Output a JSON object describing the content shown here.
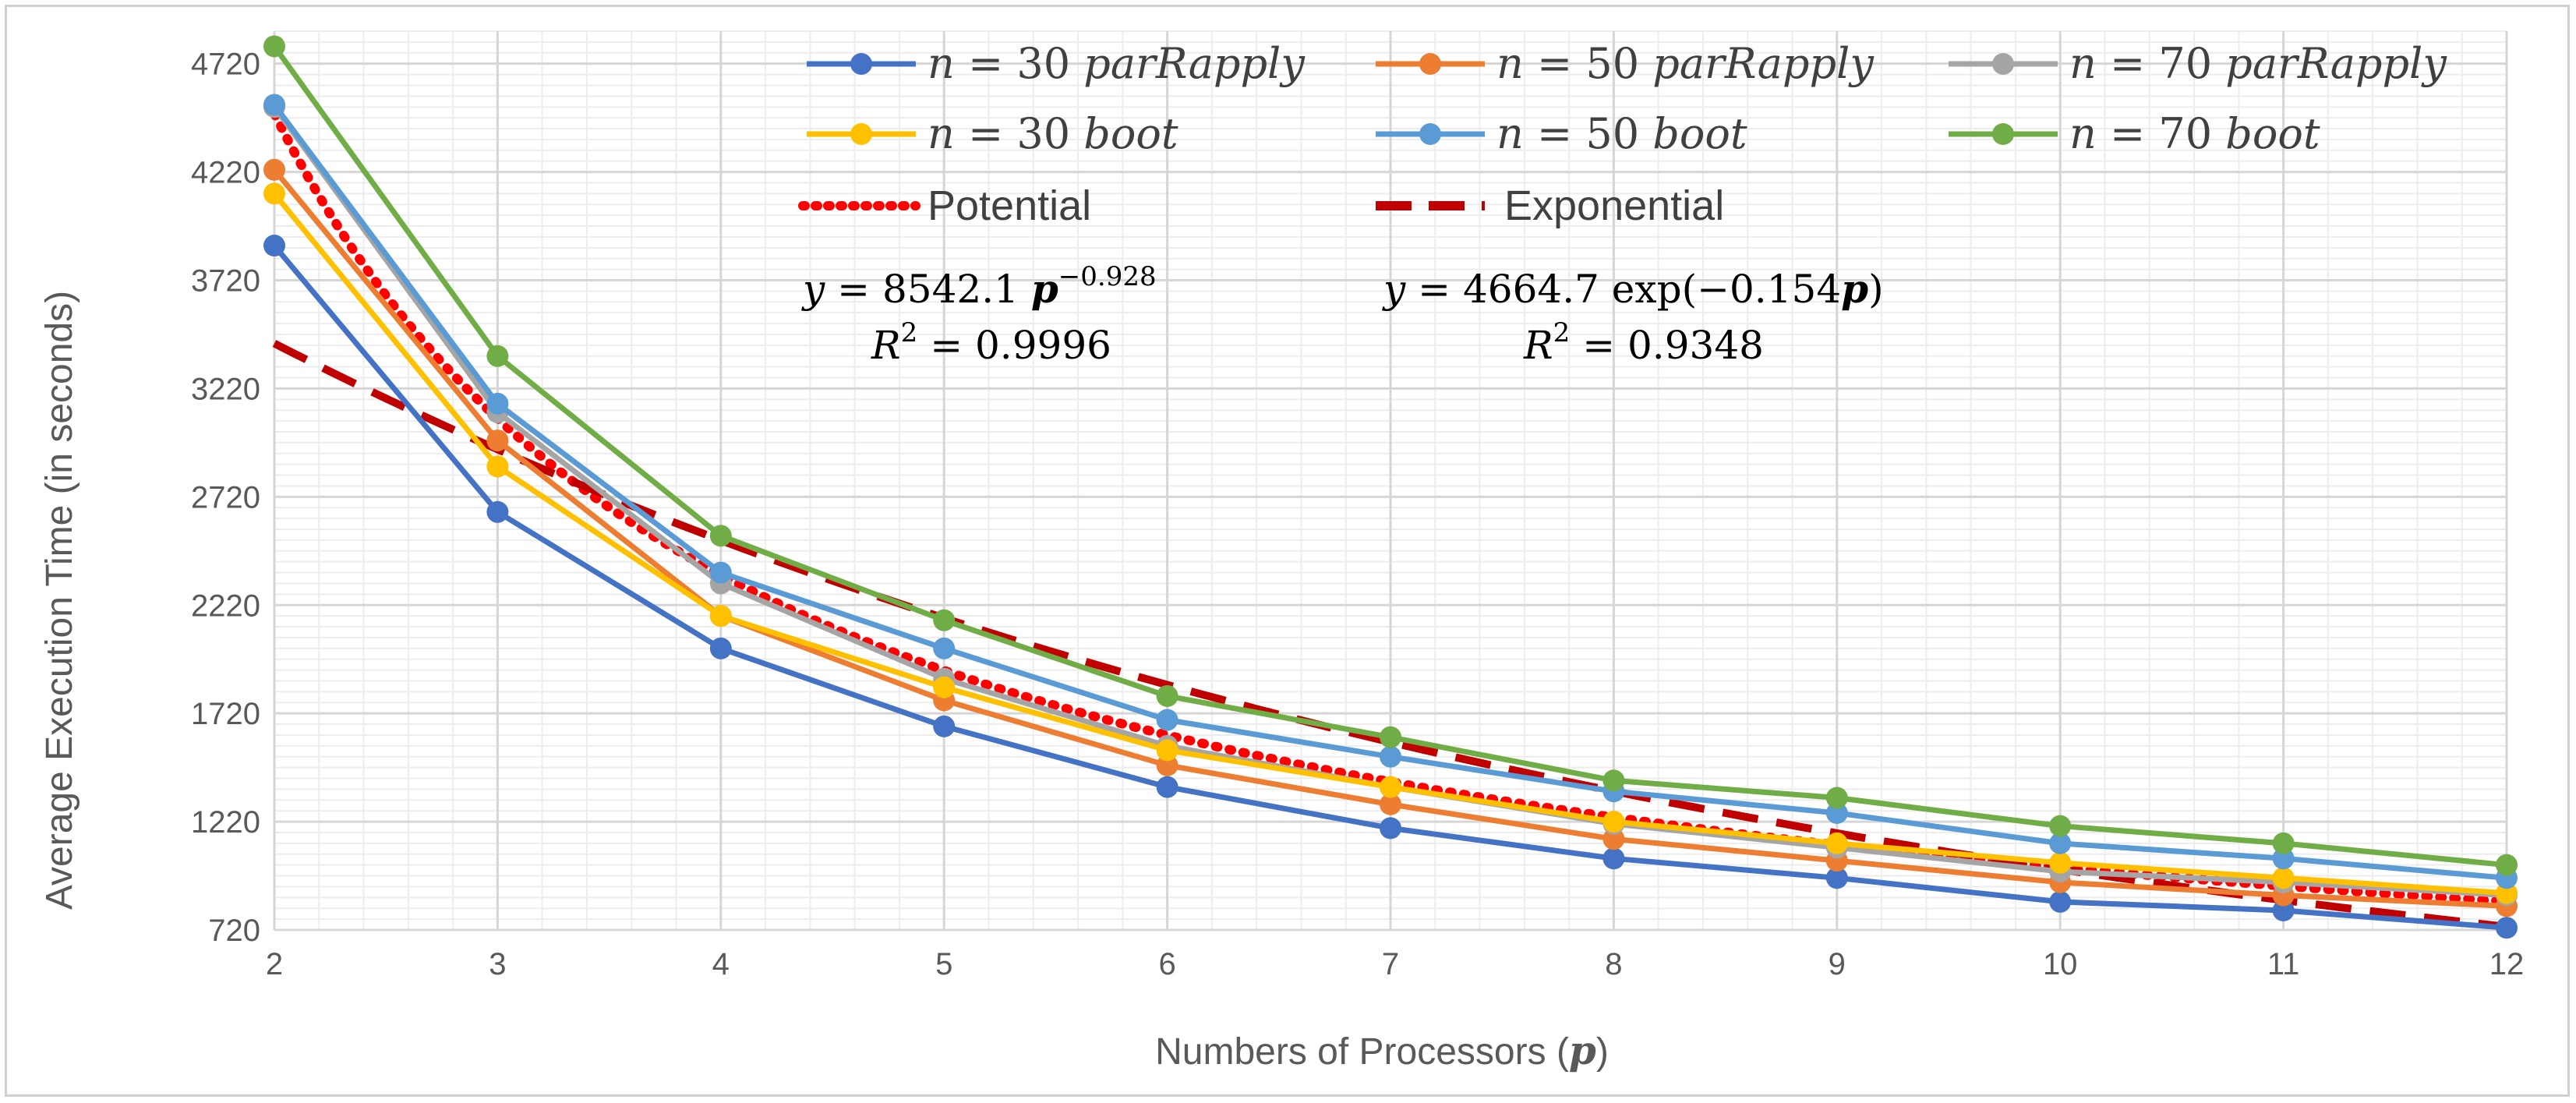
{
  "chart_data": {
    "type": "line",
    "title": "",
    "xlabel": "Numbers of Processors (p)",
    "xlabel_prefix": "Numbers of Processors (",
    "xlabel_var": "p",
    "xlabel_suffix": ")",
    "ylabel": "Average Execution Time (in seconds)",
    "x": [
      2,
      3,
      4,
      5,
      6,
      7,
      8,
      9,
      10,
      11,
      12
    ],
    "ylim": [
      720,
      4870
    ],
    "yticks": [
      720,
      1220,
      1720,
      2220,
      2720,
      3220,
      3720,
      4220,
      4720
    ],
    "grid": true,
    "legend_position": "top",
    "series": [
      {
        "name": "n = 30  parRapply",
        "n_label": "n",
        "n_value": "= 30",
        "method": "parRapply",
        "color": "#4472C4",
        "values": [
          3880,
          2650,
          2020,
          1660,
          1380,
          1190,
          1050,
          960,
          850,
          810,
          730
        ]
      },
      {
        "name": "n = 50  parRapply",
        "n_label": "n",
        "n_value": "= 50",
        "method": "parRapply",
        "color": "#ED7D31",
        "values": [
          4230,
          2980,
          2170,
          1780,
          1480,
          1300,
          1140,
          1040,
          940,
          880,
          830
        ]
      },
      {
        "name": "n = 70  parRapply",
        "n_label": "n",
        "n_value": "= 70",
        "method": "parRapply",
        "color": "#A5A5A5",
        "values": [
          4520,
          3110,
          2320,
          1880,
          1570,
          1380,
          1210,
          1100,
          990,
          940,
          880
        ]
      },
      {
        "name": "n = 30  boot",
        "n_label": "n",
        "n_value": "= 30",
        "method": "boot",
        "color": "#FFC000",
        "values": [
          4120,
          2860,
          2170,
          1840,
          1550,
          1380,
          1220,
          1120,
          1030,
          960,
          890
        ]
      },
      {
        "name": "n = 50  boot",
        "n_label": "n",
        "n_value": "= 50",
        "method": "boot",
        "color": "#5B9BD5",
        "values": [
          4530,
          3150,
          2370,
          2020,
          1690,
          1520,
          1360,
          1260,
          1120,
          1050,
          960
        ]
      },
      {
        "name": "n = 70  boot",
        "n_label": "n",
        "n_value": "= 70",
        "method": "boot",
        "color": "#70AD47",
        "values": [
          4800,
          3370,
          2540,
          2150,
          1800,
          1610,
          1410,
          1330,
          1200,
          1120,
          1020
        ]
      }
    ],
    "trendlines": [
      {
        "name": "Potential",
        "type": "power",
        "color": "#FF0000",
        "coef": 8542.1,
        "exponent": -0.928,
        "equation_lhs": "y",
        "equation_mid": "= 8542.1",
        "equation_var": "p",
        "equation_power": "−0.928",
        "r2_lhs": "R",
        "r2_power": "2",
        "r2_rhs": "= 0.9996"
      },
      {
        "name": "Exponential",
        "type": "exponential",
        "color": "#C00000",
        "coef": 4664.7,
        "rate": -0.154,
        "equation_lhs": "y",
        "equation_mid": "= 4664.7 exp(−0.154",
        "equation_var": "p",
        "equation_close": ")",
        "r2_lhs": "R",
        "r2_power": "2",
        "r2_rhs": "= 0.9348"
      }
    ]
  }
}
